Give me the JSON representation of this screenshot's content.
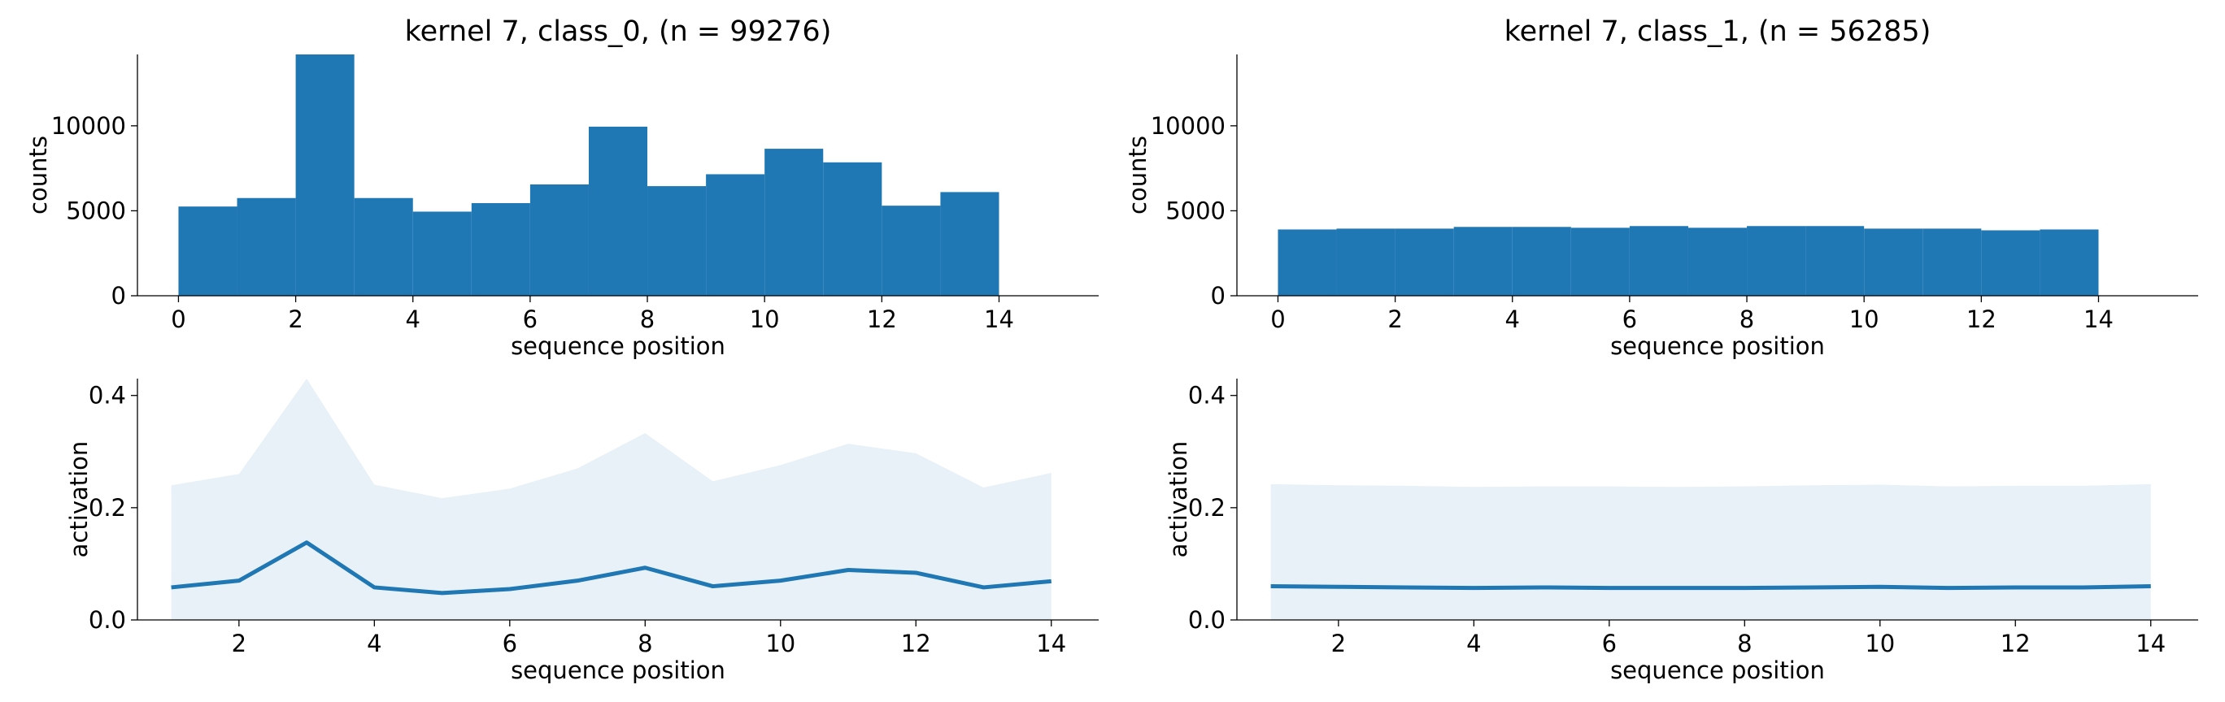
{
  "chart_data": [
    {
      "id": "hist_class0",
      "type": "bar",
      "title": "kernel 7, class_0, (n = 99276)",
      "xlabel": "sequence position",
      "ylabel": "counts",
      "xlim": [
        -0.7,
        15.7
      ],
      "ylim": [
        0,
        14200
      ],
      "xticks": [
        0,
        2,
        4,
        6,
        8,
        10,
        12,
        14
      ],
      "yticks": [
        0,
        5000,
        10000
      ],
      "bin_edges": [
        0,
        1,
        2,
        3,
        4,
        5,
        6,
        7,
        8,
        9,
        10,
        11,
        12,
        13,
        14
      ],
      "values": [
        5250,
        5750,
        14200,
        5750,
        4950,
        5450,
        6550,
        9950,
        6450,
        7150,
        8650,
        7850,
        5300,
        6100
      ]
    },
    {
      "id": "hist_class1",
      "type": "bar",
      "title": "kernel 7, class_1, (n = 56285)",
      "xlabel": "sequence position",
      "ylabel": "counts",
      "xlim": [
        -0.7,
        15.7
      ],
      "ylim": [
        0,
        14200
      ],
      "xticks": [
        0,
        2,
        4,
        6,
        8,
        10,
        12,
        14
      ],
      "yticks": [
        0,
        5000,
        10000
      ],
      "bin_edges": [
        0,
        1,
        2,
        3,
        4,
        5,
        6,
        7,
        8,
        9,
        10,
        11,
        12,
        13,
        14
      ],
      "values": [
        3900,
        3950,
        3950,
        4050,
        4050,
        4000,
        4100,
        4000,
        4100,
        4100,
        3950,
        3950,
        3850,
        3900
      ]
    },
    {
      "id": "act_class0",
      "type": "line",
      "title": "",
      "xlabel": "sequence position",
      "ylabel": "activation",
      "xlim": [
        0.5,
        14.7
      ],
      "ylim": [
        0,
        0.43
      ],
      "xticks": [
        2,
        4,
        6,
        8,
        10,
        12,
        14
      ],
      "yticks": [
        0.0,
        0.2,
        0.4
      ],
      "x": [
        1,
        2,
        3,
        4,
        5,
        6,
        7,
        8,
        9,
        10,
        11,
        12,
        13,
        14
      ],
      "mean": [
        0.058,
        0.07,
        0.138,
        0.058,
        0.048,
        0.055,
        0.07,
        0.093,
        0.06,
        0.07,
        0.089,
        0.084,
        0.058,
        0.069
      ],
      "band_upper": [
        0.24,
        0.26,
        0.43,
        0.241,
        0.217,
        0.234,
        0.27,
        0.333,
        0.247,
        0.276,
        0.314,
        0.297,
        0.236,
        0.262
      ],
      "band_lower": [
        0,
        0,
        0,
        0,
        0,
        0,
        0,
        0,
        0,
        0,
        0,
        0,
        0,
        0
      ]
    },
    {
      "id": "act_class1",
      "type": "line",
      "title": "",
      "xlabel": "sequence position",
      "ylabel": "activation",
      "xlim": [
        0.5,
        14.7
      ],
      "ylim": [
        0,
        0.43
      ],
      "xticks": [
        2,
        4,
        6,
        8,
        10,
        12,
        14
      ],
      "yticks": [
        0.0,
        0.2,
        0.4
      ],
      "x": [
        1,
        2,
        3,
        4,
        5,
        6,
        7,
        8,
        9,
        10,
        11,
        12,
        13,
        14
      ],
      "mean": [
        0.06,
        0.059,
        0.058,
        0.057,
        0.058,
        0.057,
        0.057,
        0.057,
        0.058,
        0.059,
        0.057,
        0.058,
        0.058,
        0.06
      ],
      "band_upper": [
        0.242,
        0.24,
        0.239,
        0.237,
        0.238,
        0.238,
        0.237,
        0.238,
        0.24,
        0.241,
        0.238,
        0.239,
        0.239,
        0.242
      ],
      "band_lower": [
        0,
        0,
        0,
        0,
        0,
        0,
        0,
        0,
        0,
        0,
        0,
        0,
        0,
        0
      ]
    }
  ]
}
